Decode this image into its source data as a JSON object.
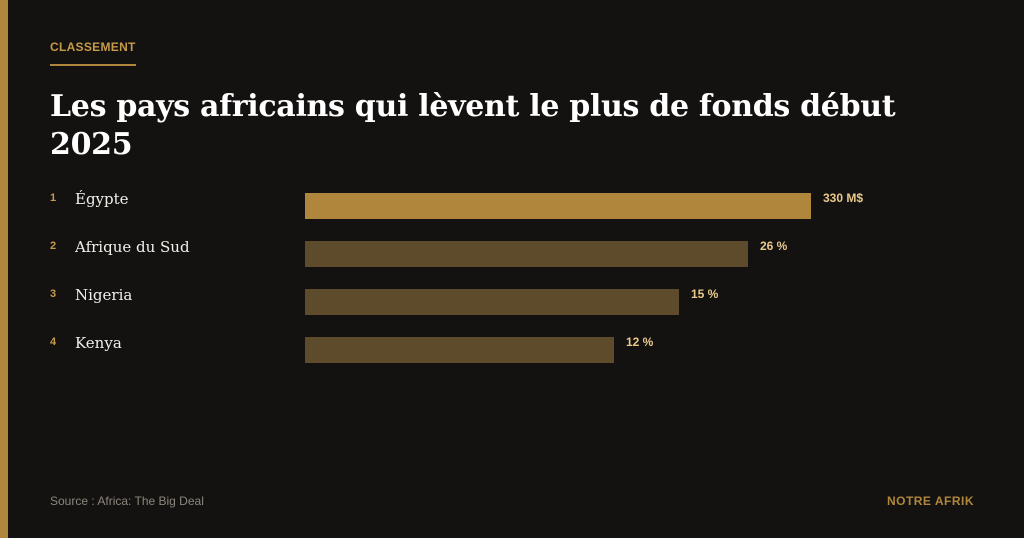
{
  "header": {
    "kicker": "CLASSEMENT",
    "title": "Les pays africains qui lèvent le plus de fonds début 2025"
  },
  "chart_data": {
    "type": "bar",
    "orientation": "horizontal",
    "title": "Les pays africains qui lèvent le plus de fonds début 2025",
    "categories": [
      "Égypte",
      "Afrique du Sud",
      "Nigeria",
      "Kenya"
    ],
    "ranks": [
      "1",
      "2",
      "3",
      "4"
    ],
    "value_labels": [
      "330 M$",
      "26 %",
      "15 %",
      "12 %"
    ],
    "relative_bar_length": [
      1.0,
      0.875,
      0.74,
      0.61
    ],
    "highlight_color": "#b0863c",
    "bar_color": "#5d4b2c",
    "grid": false,
    "legend": "none"
  },
  "footer": {
    "source": "Source : Africa: The Big Deal",
    "brand": "NOTRE AFRIK"
  },
  "colors": {
    "background": "#141210",
    "accent": "#b0863c",
    "value_text": "#e8c98a"
  }
}
